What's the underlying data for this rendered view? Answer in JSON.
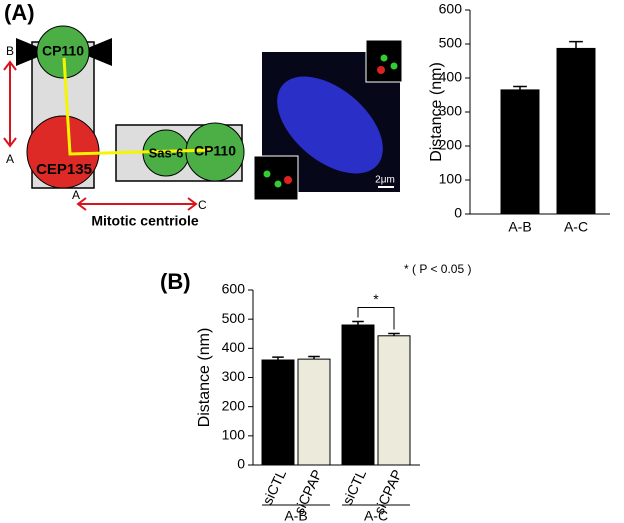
{
  "panel_labels": [
    "(A)",
    "(B)"
  ],
  "diagram": {
    "top_circle": "CP110",
    "bottom_circle": "CEP135",
    "middle_circle": "Sas-6",
    "right_circle": "CP110",
    "label_b": "B",
    "label_a_left": "A",
    "label_a_bottom": "A",
    "label_c": "C",
    "caption": "Mitotic centriole",
    "scale_bar": "2μm"
  },
  "chart_data": [
    {
      "type": "bar",
      "ylabel": "Distance (nm)",
      "categories": [
        "A-B",
        "A-C"
      ],
      "values": [
        365,
        487
      ],
      "errors": [
        10,
        20
      ],
      "color": "#000000",
      "ylim": [
        0,
        600
      ],
      "yticks": [
        0,
        100,
        200,
        300,
        400,
        500,
        600
      ]
    },
    {
      "type": "bar",
      "ylabel": "Distance (nm)",
      "categories": [
        "A-B",
        "A-C"
      ],
      "series": [
        {
          "name": "siCTL",
          "color": "#000000",
          "values": [
            360,
            480
          ],
          "errors": [
            10,
            12
          ]
        },
        {
          "name": "siCPAP",
          "color": "#eceadb",
          "values": [
            363,
            443
          ],
          "errors": [
            9,
            8
          ]
        }
      ],
      "ylim": [
        0,
        600
      ],
      "yticks": [
        0,
        100,
        200,
        300,
        400,
        500,
        600
      ],
      "significance_label": "*",
      "annotation": "* ( P < 0.05 )"
    }
  ]
}
